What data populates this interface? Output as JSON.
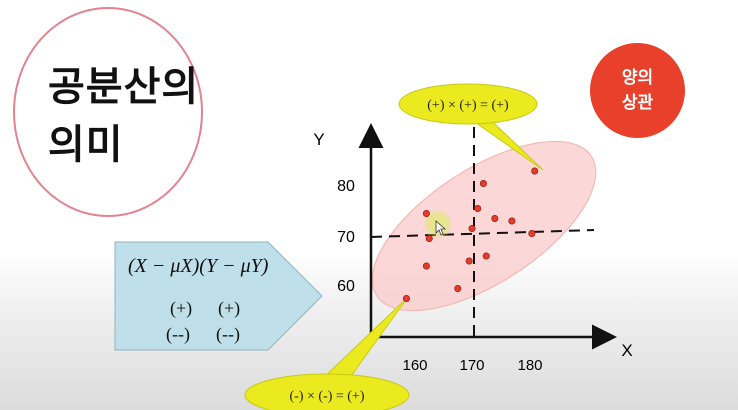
{
  "title": {
    "line1": "공분산의",
    "line2": "의미"
  },
  "badge": {
    "line1": "양의",
    "line2": "상관"
  },
  "formula": {
    "expression": "(X − μX)(Y − μY)",
    "signs_row1": [
      "(+)",
      "(+)"
    ],
    "signs_row2": [
      "(--)",
      "(--)"
    ]
  },
  "callouts": {
    "top": "(+) × (+) = (+)",
    "bottom": "(-) × (-) = (+)"
  },
  "colors": {
    "circle_border": "#e2838f",
    "badge": "#e8402a",
    "ellipse_fill": "#f9c9c9",
    "callout_fill": "#eaea1f",
    "arrow_box": "#bfe0ea",
    "points": "#e83a2a"
  },
  "chart_data": {
    "type": "scatter",
    "xlabel": "X",
    "ylabel": "Y",
    "x_ticks": [
      "160",
      "170",
      "180"
    ],
    "y_ticks": [
      "60",
      "70",
      "80"
    ],
    "xlim": [
      155,
      190
    ],
    "ylim": [
      51.5,
      87
    ],
    "mean_x": 170,
    "mean_y": 70,
    "points": [
      {
        "x": 158.5,
        "y": 57.5
      },
      {
        "x": 162,
        "y": 74.5
      },
      {
        "x": 162.5,
        "y": 69.5
      },
      {
        "x": 162,
        "y": 64
      },
      {
        "x": 167.5,
        "y": 59.5
      },
      {
        "x": 169.5,
        "y": 65
      },
      {
        "x": 170,
        "y": 71.5
      },
      {
        "x": 171,
        "y": 75.5
      },
      {
        "x": 172,
        "y": 80.5
      },
      {
        "x": 172.5,
        "y": 66
      },
      {
        "x": 174,
        "y": 73.5
      },
      {
        "x": 177,
        "y": 73
      },
      {
        "x": 180.5,
        "y": 70.5
      },
      {
        "x": 181,
        "y": 83
      }
    ]
  }
}
